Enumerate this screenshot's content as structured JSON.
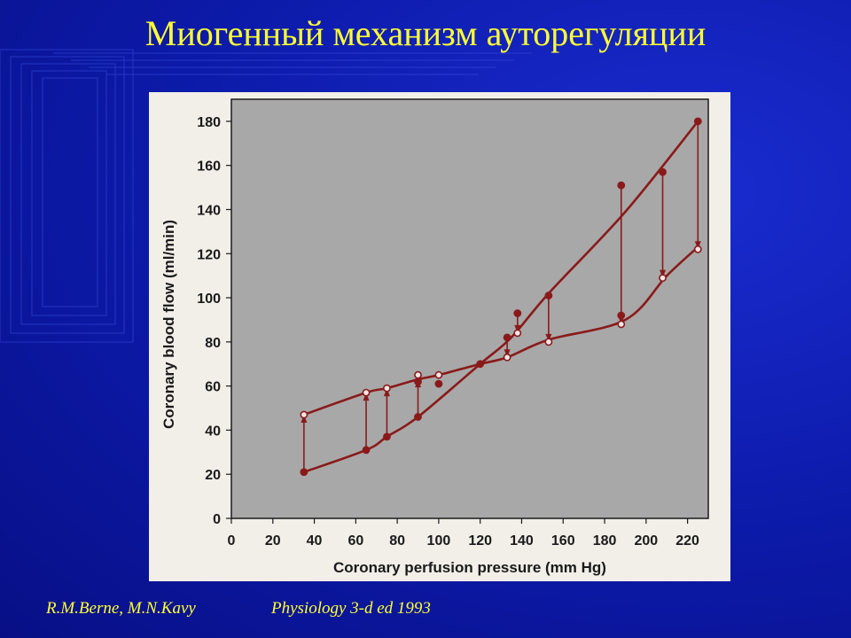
{
  "slide": {
    "title": "Миогенный механизм ауторегуляции",
    "footer_authors": "R.M.Berne, M.N.Kavy",
    "footer_source": "Physiology 3-d ed 1993",
    "colors": {
      "background": "#0c1aa8",
      "title": "#ffff33",
      "footer": "#ffff33",
      "series": "#8a1a1a"
    }
  },
  "chart_data": {
    "type": "line",
    "title": "",
    "xlabel": "Coronary perfusion pressure (mm Hg)",
    "ylabel": "Coronary blood flow (ml/min)",
    "xlim": [
      0,
      230
    ],
    "ylim": [
      0,
      190
    ],
    "xticks": [
      0,
      20,
      40,
      60,
      80,
      100,
      120,
      140,
      160,
      180,
      200,
      220
    ],
    "yticks": [
      0,
      20,
      40,
      60,
      80,
      100,
      120,
      140,
      160,
      180
    ],
    "grid": false,
    "series": [
      {
        "style": "curve-filled-points",
        "x": [
          35,
          65,
          75,
          90,
          120,
          135,
          153,
          190,
          225
        ],
        "y": [
          21,
          31,
          37,
          46,
          70,
          82,
          102,
          139,
          180
        ]
      },
      {
        "style": "curve-open-points",
        "x": [
          35,
          65,
          75,
          90,
          100,
          120,
          133,
          153,
          190,
          210,
          225
        ],
        "y": [
          47,
          57,
          59,
          63,
          65,
          70,
          73,
          81,
          90,
          110,
          123
        ]
      }
    ],
    "points": [
      {
        "x": 35,
        "y": 21,
        "filled": true
      },
      {
        "x": 65,
        "y": 31,
        "filled": true
      },
      {
        "x": 75,
        "y": 37,
        "filled": true
      },
      {
        "x": 90,
        "y": 46,
        "filled": true
      },
      {
        "x": 90,
        "y": 62,
        "filled": true
      },
      {
        "x": 100,
        "y": 61,
        "filled": true
      },
      {
        "x": 120,
        "y": 70,
        "filled": true
      },
      {
        "x": 133,
        "y": 82,
        "filled": true
      },
      {
        "x": 138,
        "y": 93,
        "filled": true
      },
      {
        "x": 153,
        "y": 101,
        "filled": true
      },
      {
        "x": 188,
        "y": 151,
        "filled": true
      },
      {
        "x": 188,
        "y": 92,
        "filled": true
      },
      {
        "x": 208,
        "y": 157,
        "filled": true
      },
      {
        "x": 225,
        "y": 180,
        "filled": true
      },
      {
        "x": 35,
        "y": 47,
        "filled": false
      },
      {
        "x": 65,
        "y": 57,
        "filled": false
      },
      {
        "x": 75,
        "y": 59,
        "filled": false
      },
      {
        "x": 90,
        "y": 65,
        "filled": false
      },
      {
        "x": 100,
        "y": 65,
        "filled": false
      },
      {
        "x": 133,
        "y": 73,
        "filled": false
      },
      {
        "x": 138,
        "y": 84,
        "filled": false
      },
      {
        "x": 153,
        "y": 80,
        "filled": false
      },
      {
        "x": 188,
        "y": 88,
        "filled": false
      },
      {
        "x": 208,
        "y": 109,
        "filled": false
      },
      {
        "x": 225,
        "y": 122,
        "filled": false
      }
    ],
    "arrows": [
      {
        "x": 35,
        "from": 21,
        "to": 47
      },
      {
        "x": 65,
        "from": 31,
        "to": 57
      },
      {
        "x": 75,
        "from": 37,
        "to": 59
      },
      {
        "x": 90,
        "from": 46,
        "to": 63
      },
      {
        "x": 133,
        "from": 82,
        "to": 73
      },
      {
        "x": 138,
        "from": 93,
        "to": 84
      },
      {
        "x": 153,
        "from": 101,
        "to": 80
      },
      {
        "x": 188,
        "from": 151,
        "to": 88
      },
      {
        "x": 208,
        "from": 157,
        "to": 109
      },
      {
        "x": 225,
        "from": 180,
        "to": 122
      }
    ]
  }
}
